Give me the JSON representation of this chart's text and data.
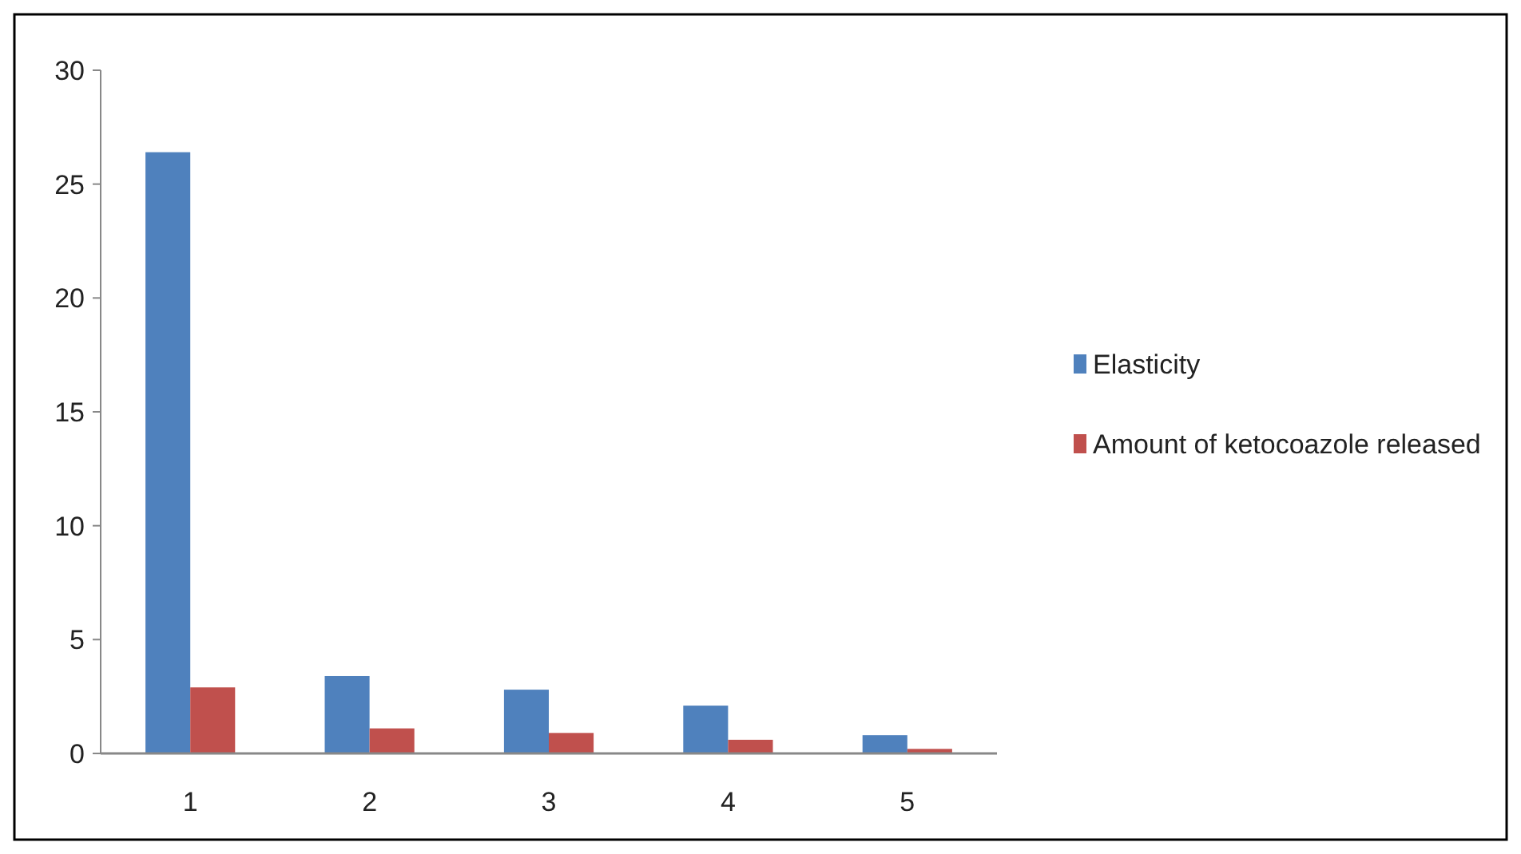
{
  "chart_data": {
    "type": "bar",
    "categories": [
      "1",
      "2",
      "3",
      "4",
      "5"
    ],
    "series": [
      {
        "name": "Elasticity",
        "color": "#4f81bd",
        "values": [
          26.4,
          3.4,
          2.8,
          2.1,
          0.8
        ]
      },
      {
        "name": "Amount of ketocoazole released",
        "color": "#c0504d",
        "values": [
          2.9,
          1.1,
          0.9,
          0.6,
          0.2
        ]
      }
    ],
    "ylim": [
      0,
      30
    ],
    "yticks": [
      0,
      5,
      10,
      15,
      20,
      25,
      30
    ],
    "legend": "right"
  }
}
